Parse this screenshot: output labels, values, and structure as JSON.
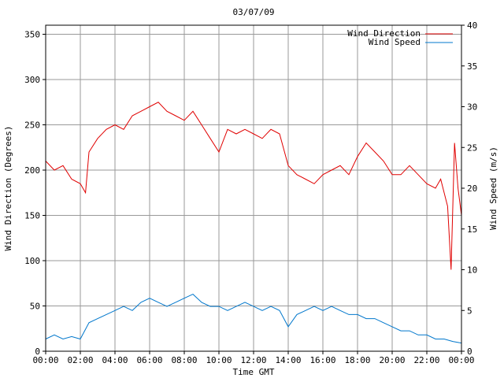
{
  "chart_data": {
    "type": "line",
    "title": "03/07/09",
    "xlabel": "Time GMT",
    "ylabel_left": "Wind Direction (Degrees)",
    "ylabel_right": "Wind Speed (m/s)",
    "x_ticks": [
      "00:00",
      "02:00",
      "04:00",
      "06:00",
      "08:00",
      "10:00",
      "12:00",
      "14:00",
      "16:00",
      "18:00",
      "20:00",
      "22:00",
      "00:00"
    ],
    "y_left_ticks": [
      "0",
      "50",
      "100",
      "150",
      "200",
      "250",
      "300",
      "350"
    ],
    "y_right_ticks": [
      "0",
      "5",
      "10",
      "15",
      "20",
      "25",
      "30",
      "35",
      "40"
    ],
    "ylim_left": [
      0,
      360
    ],
    "ylim_right": [
      0,
      40
    ],
    "xlim_hours": [
      0,
      24
    ],
    "grid": true,
    "legend_position": "top-right",
    "series": [
      {
        "name": "Wind Direction",
        "axis": "left",
        "color": "#e00000",
        "x_hours": [
          0,
          0.5,
          1,
          1.5,
          2,
          2.3,
          2.5,
          3,
          3.5,
          4,
          4.5,
          5,
          5.5,
          6,
          6.5,
          7,
          7.5,
          8,
          8.5,
          9,
          9.5,
          10,
          10.5,
          11,
          11.5,
          12,
          12.5,
          13,
          13.5,
          14,
          14.5,
          15,
          15.5,
          16,
          16.5,
          17,
          17.5,
          18,
          18.5,
          19,
          19.5,
          20,
          20.5,
          21,
          21.5,
          22,
          22.5,
          22.8,
          23,
          23.2,
          23.4,
          23.6,
          23.8,
          24
        ],
        "values": [
          210,
          200,
          205,
          190,
          185,
          175,
          220,
          235,
          245,
          250,
          245,
          260,
          265,
          270,
          275,
          265,
          260,
          255,
          265,
          250,
          235,
          220,
          245,
          240,
          245,
          240,
          235,
          245,
          240,
          205,
          195,
          190,
          185,
          195,
          200,
          205,
          195,
          215,
          230,
          220,
          210,
          195,
          195,
          205,
          195,
          185,
          180,
          190,
          175,
          160,
          90,
          230,
          180,
          150
        ]
      },
      {
        "name": "Wind Speed",
        "axis": "right",
        "color": "#0077cc",
        "x_hours": [
          0,
          0.5,
          1,
          1.5,
          2,
          2.5,
          3,
          3.5,
          4,
          4.5,
          5,
          5.5,
          6,
          6.5,
          7,
          7.5,
          8,
          8.5,
          9,
          9.5,
          10,
          10.5,
          11,
          11.5,
          12,
          12.5,
          13,
          13.5,
          14,
          14.5,
          15,
          15.5,
          16,
          16.5,
          17,
          17.5,
          18,
          18.5,
          19,
          19.5,
          20,
          20.5,
          21,
          21.5,
          22,
          22.5,
          23,
          23.5,
          24
        ],
        "values": [
          1.5,
          2,
          1.5,
          1.8,
          1.5,
          3.5,
          4,
          4.5,
          5,
          5.5,
          5,
          6,
          6.5,
          6,
          5.5,
          6,
          6.5,
          7,
          6,
          5.5,
          5.5,
          5,
          5.5,
          6,
          5.5,
          5,
          5.5,
          5,
          3,
          4.5,
          5,
          5.5,
          5,
          5.5,
          5,
          4.5,
          4.5,
          4,
          4,
          3.5,
          3,
          2.5,
          2.5,
          2,
          2,
          1.5,
          1.5,
          1.2,
          1
        ]
      }
    ]
  }
}
